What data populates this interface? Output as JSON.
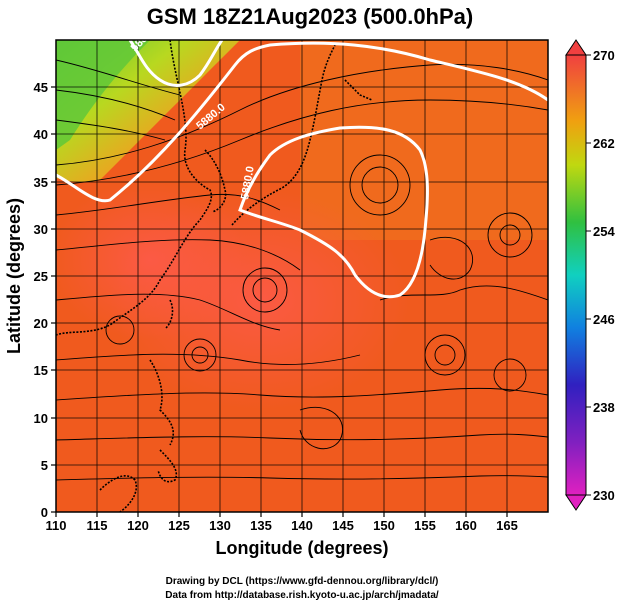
{
  "title": "GSM 18Z21Aug2023 (500.0hPa)",
  "x_axis": {
    "label": "Longitude (degrees)",
    "range": [
      110,
      170
    ],
    "ticks": [
      "110",
      "115",
      "120",
      "125",
      "130",
      "135",
      "140",
      "145",
      "150",
      "155",
      "160",
      "165"
    ]
  },
  "y_axis": {
    "label": "Latitude (degrees)",
    "range": [
      0,
      50
    ],
    "ticks": [
      "0",
      "5",
      "10",
      "15",
      "20",
      "25",
      "30",
      "35",
      "40",
      "45"
    ]
  },
  "colorbar": {
    "range": [
      230,
      270
    ],
    "ticks": [
      "230",
      "238",
      "246",
      "254",
      "262",
      "270"
    ],
    "colors": [
      "#e020c0",
      "#3020c0",
      "#10b0e0",
      "#30c040",
      "#f0d000",
      "#f04040"
    ]
  },
  "contours": [
    {
      "label": "5880.0",
      "color": "#ffffff"
    },
    {
      "label": "5880.0",
      "color": "#ffffff"
    },
    {
      "label": "5880.0",
      "color": "#ffffff"
    }
  ],
  "credits": [
    "Drawing by DCL (https://www.gfd-dennou.org/library/dcl/)",
    "Data from http://database.rish.kyoto-u.ac.jp/arch/jmadata/"
  ]
}
